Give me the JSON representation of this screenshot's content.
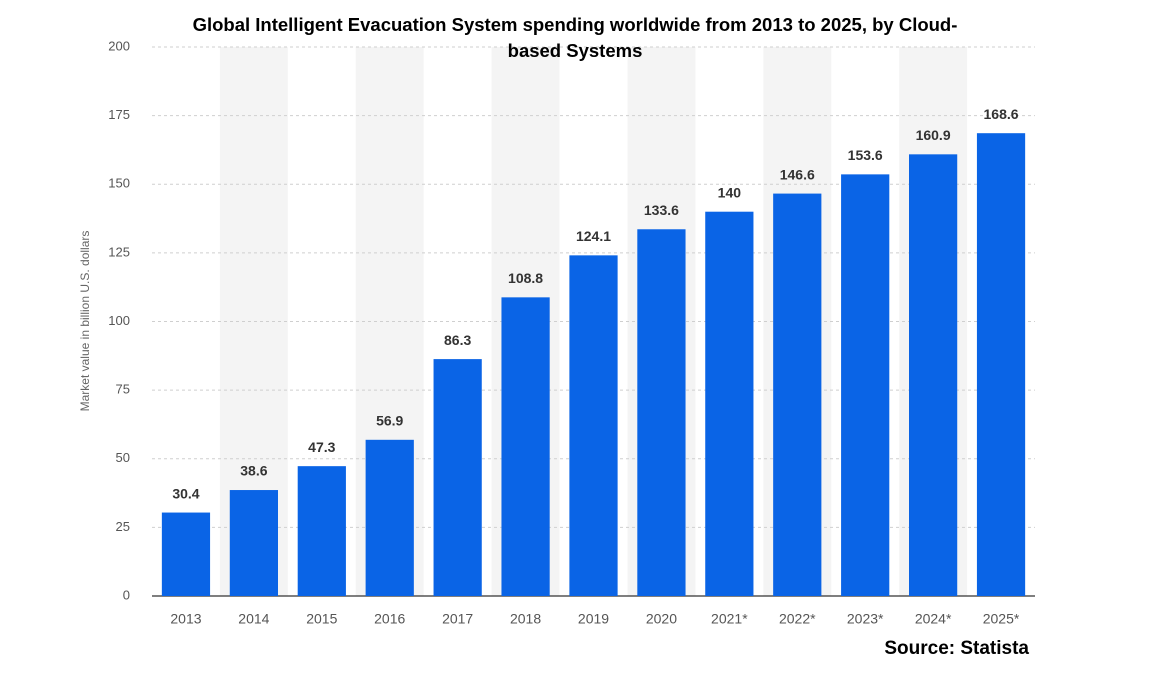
{
  "chart_data": {
    "type": "bar",
    "title": "Global Intelligent Evacuation System spending worldwide from 2013 to 2025, by Cloud-based Systems",
    "y_label": "Market value in billion U.S. dollars",
    "source": "Source: Statista",
    "categories": [
      "2013",
      "2014",
      "2015",
      "2016",
      "2017",
      "2018",
      "2019",
      "2020",
      "2021*",
      "2022*",
      "2023*",
      "2024*",
      "2025*"
    ],
    "values": [
      30.4,
      38.6,
      47.3,
      56.9,
      86.3,
      108.8,
      124.1,
      133.6,
      140,
      146.6,
      153.6,
      160.9,
      168.6
    ],
    "color": "#0a64e6",
    "ylim": [
      0,
      200
    ],
    "yticks": [
      0,
      25,
      50,
      75,
      100,
      125,
      150,
      175,
      200
    ],
    "grid": true
  }
}
